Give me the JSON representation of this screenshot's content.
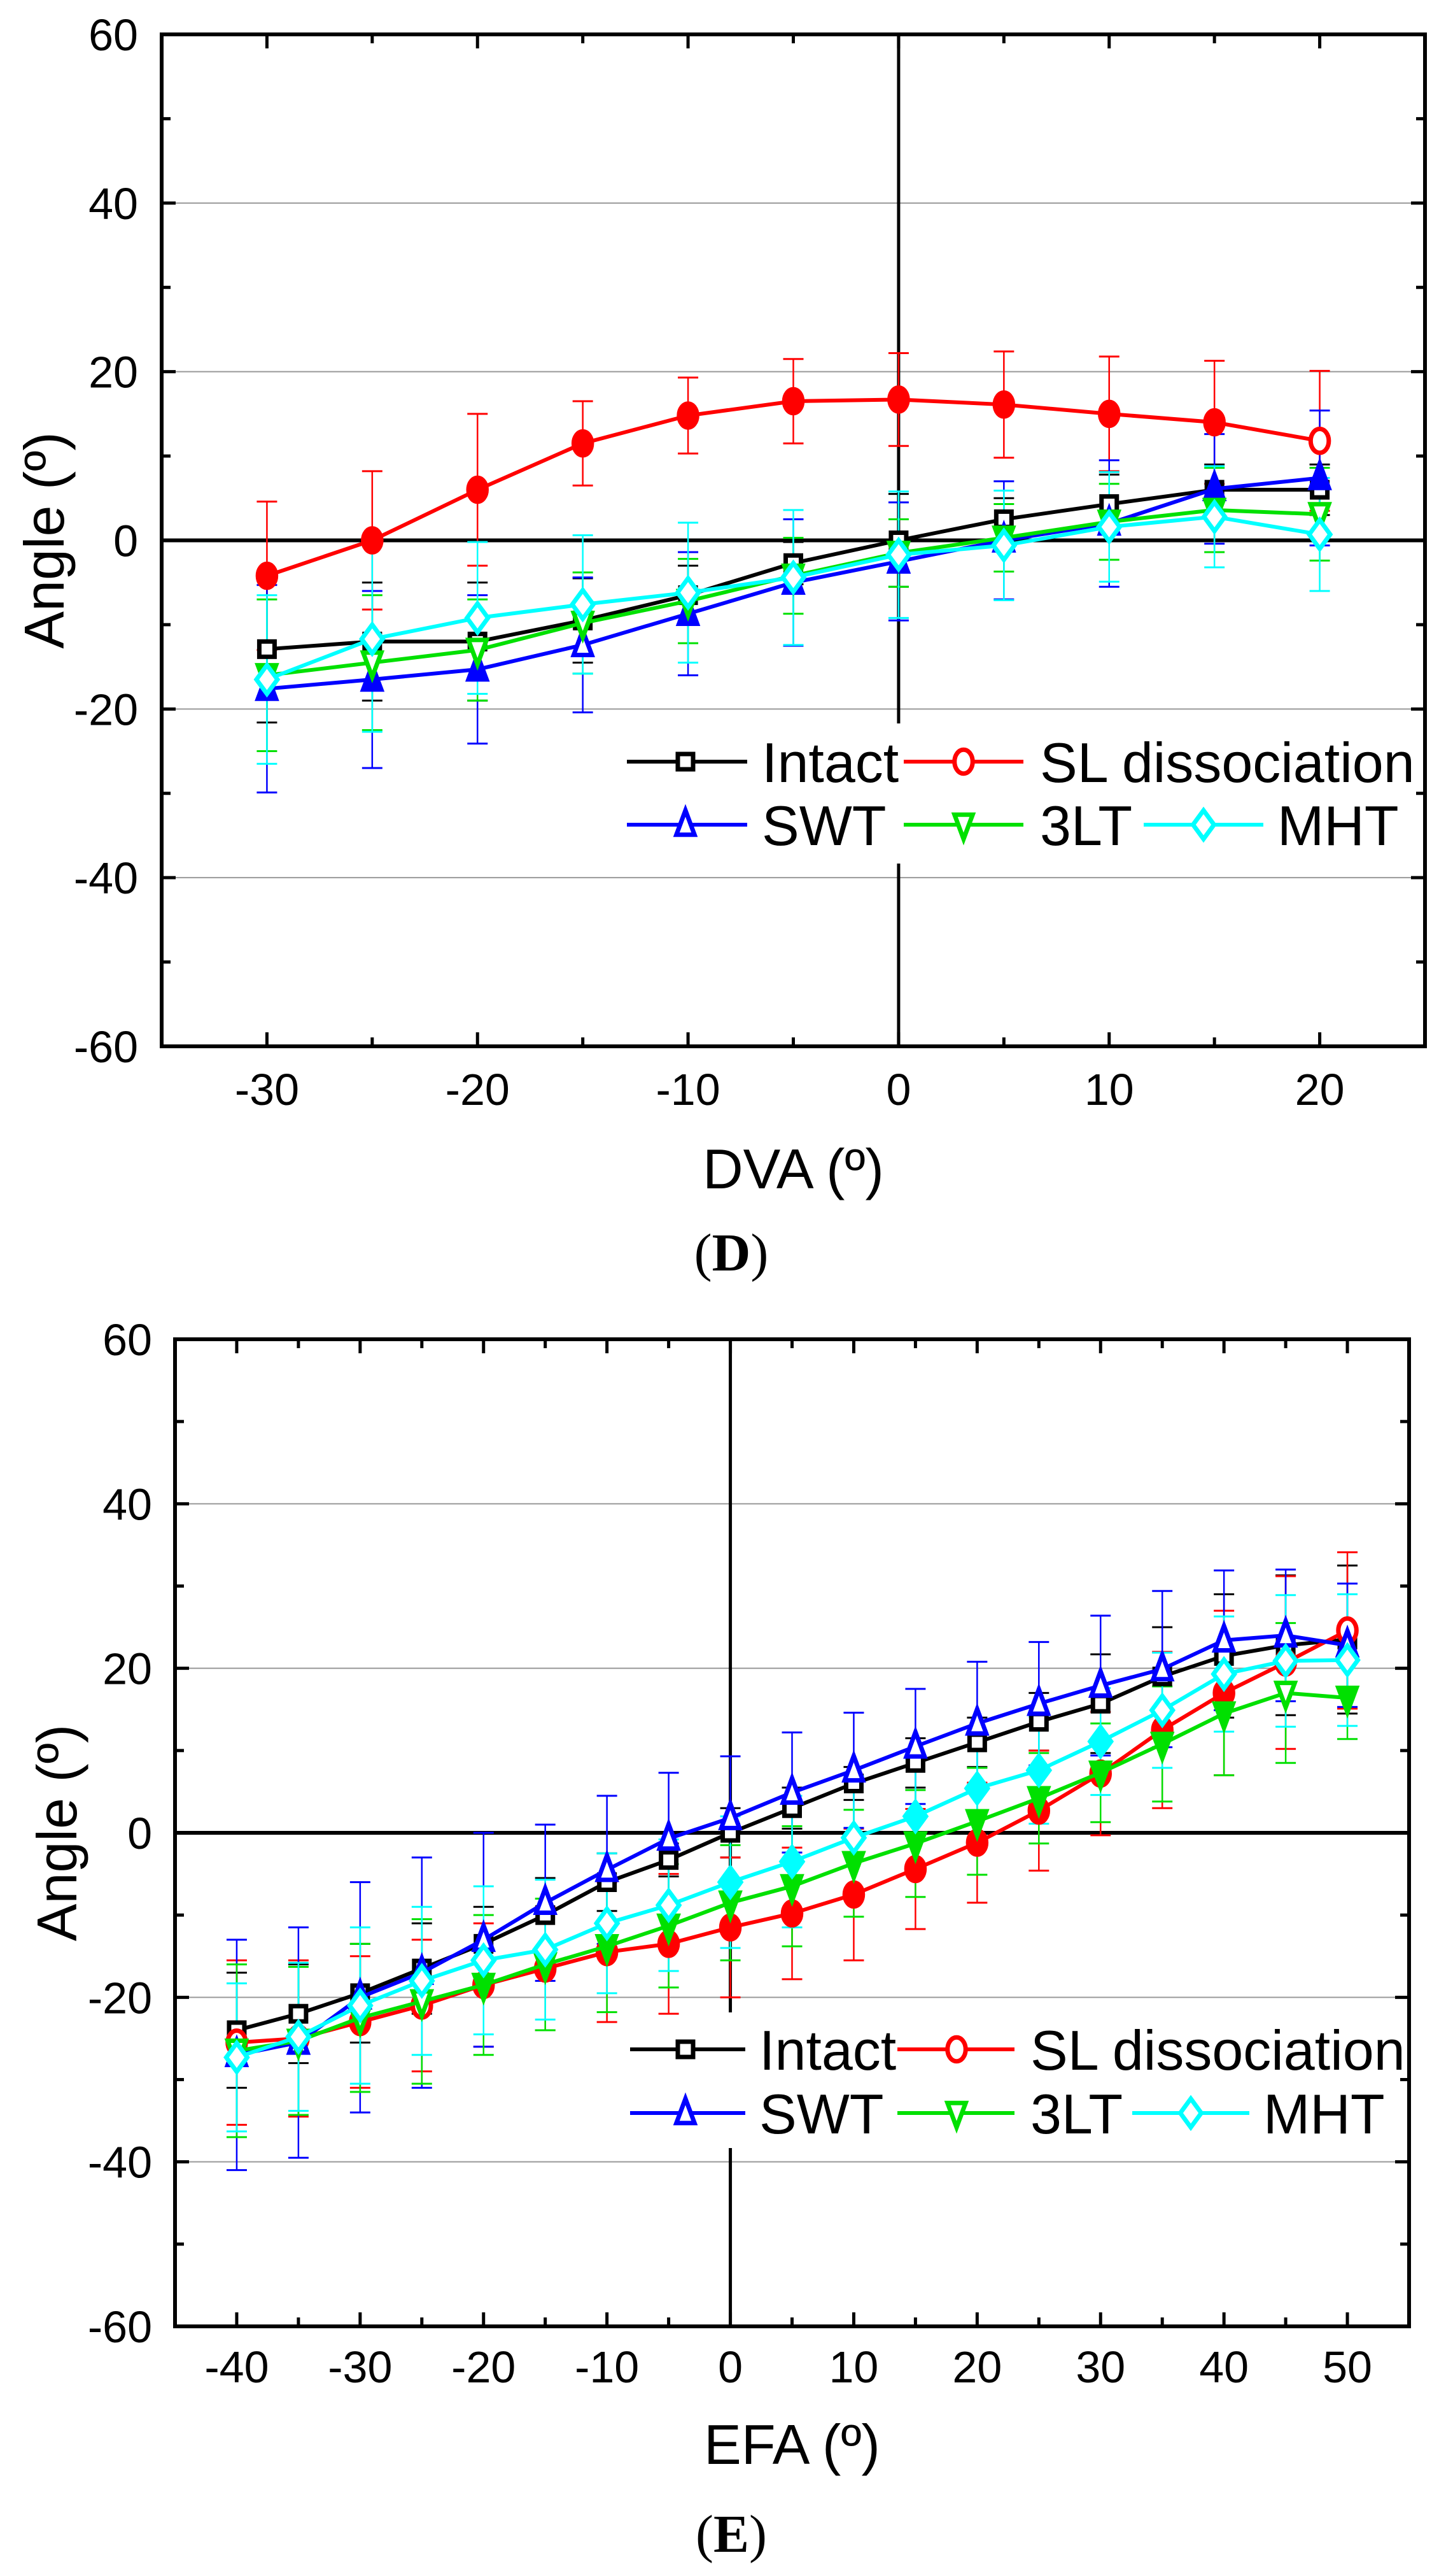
{
  "colors": {
    "Intact": "#000000",
    "SL dissociation": "#ff0000",
    "SWT": "#0000ff",
    "3LT": "#00e000",
    "MHT": "#00ffff",
    "grid": "#999999"
  },
  "chart_data": [
    {
      "type": "line",
      "panel_label": "D",
      "caption_open": "(",
      "caption_close": ")",
      "xlabel": "DVA (º)",
      "ylabel": "Angle (º)",
      "xlim": [
        -35,
        25
      ],
      "ylim": [
        -60,
        60
      ],
      "xticks": [
        -30,
        -20,
        -10,
        0,
        10,
        20
      ],
      "yticks": [
        -60,
        -40,
        -20,
        0,
        20,
        40,
        60
      ],
      "grid": "horizontal",
      "legend_placement": "lower-right",
      "x": [
        -30,
        -25,
        -20,
        -15,
        -10,
        -5,
        0,
        5,
        10,
        15,
        20
      ],
      "series": [
        {
          "name": "Intact",
          "marker": "square",
          "values": [
            -12.9,
            -12,
            -12,
            -9.5,
            -6.5,
            -2.7,
            0,
            2.5,
            4.3,
            6,
            6
          ],
          "sd": [
            8.7,
            7,
            7,
            5,
            3.5,
            2.5,
            5.5,
            2.5,
            3.5,
            3,
            3
          ],
          "filled": [
            0,
            0,
            0,
            0,
            0,
            0,
            0,
            0,
            0,
            0,
            0
          ]
        },
        {
          "name": "SL dissociation",
          "marker": "circle",
          "values": [
            -4.2,
            0,
            6,
            11.5,
            14.8,
            16.5,
            16.7,
            16.1,
            15,
            14,
            11.8
          ],
          "sd": [
            8.8,
            8.2,
            9,
            5,
            4.5,
            5,
            5.5,
            6.3,
            6.8,
            7.3,
            8.3
          ],
          "filled": [
            1,
            1,
            1,
            1,
            1,
            1,
            1,
            1,
            1,
            1,
            0
          ]
        },
        {
          "name": "SWT",
          "marker": "triangle-up",
          "values": [
            -17.6,
            -16.5,
            -15.3,
            -12.4,
            -8.7,
            -5,
            -2.5,
            0,
            2,
            6.1,
            7.4
          ],
          "sd": [
            12.3,
            10.5,
            8.8,
            8,
            7.3,
            7.5,
            7,
            7,
            7.5,
            6.5,
            8
          ],
          "filled": [
            1,
            1,
            1,
            0,
            1,
            1,
            1,
            0,
            0,
            1,
            1
          ]
        },
        {
          "name": "3LT",
          "marker": "triangle-down",
          "values": [
            -16,
            -14.5,
            -13,
            -9.8,
            -7.2,
            -4.2,
            -1.5,
            0.3,
            2.2,
            3.6,
            3.1
          ],
          "sd": [
            9,
            8,
            6,
            6,
            5,
            4.5,
            4,
            4,
            4.5,
            5,
            5.5
          ],
          "filled": [
            1,
            0,
            0,
            0,
            0,
            1,
            1,
            1,
            1,
            1,
            0
          ]
        },
        {
          "name": "MHT",
          "marker": "diamond",
          "values": [
            -16.5,
            -11.7,
            -9.2,
            -7.6,
            -6.2,
            -4.4,
            -1.7,
            -0.6,
            1.6,
            2.8,
            0.7
          ],
          "sd": [
            10,
            11,
            9,
            8.2,
            8.3,
            8,
            7.5,
            6.5,
            6.5,
            6,
            6.7
          ],
          "filled": [
            0,
            0,
            0,
            0,
            0,
            0,
            0,
            0,
            0,
            0,
            0
          ]
        }
      ]
    },
    {
      "type": "line",
      "panel_label": "E",
      "caption_open": "(",
      "caption_close": ")",
      "xlabel": "EFA (º)",
      "ylabel": "Angle (º)",
      "xlim": [
        -45,
        55
      ],
      "ylim": [
        -60,
        60
      ],
      "xticks": [
        -40,
        -30,
        -20,
        -10,
        0,
        10,
        20,
        30,
        40,
        50
      ],
      "yticks": [
        -60,
        -40,
        -20,
        0,
        20,
        40,
        60
      ],
      "grid": "horizontal",
      "legend_placement": "lower-right",
      "x": [
        -40,
        -35,
        -30,
        -25,
        -20,
        -15,
        -10,
        -5,
        0,
        5,
        10,
        15,
        20,
        25,
        30,
        35,
        40,
        45,
        50
      ],
      "series": [
        {
          "name": "Intact",
          "marker": "square",
          "values": [
            -24,
            -22,
            -19.5,
            -16.5,
            -13.5,
            -10,
            -6,
            -3.3,
            0,
            3,
            6,
            8.5,
            11,
            13.5,
            15.7,
            19,
            21.5,
            22.8,
            23.5
          ],
          "sd": [
            7,
            6,
            6,
            5.5,
            4.5,
            4.5,
            3.5,
            2,
            3,
            2.5,
            2,
            3,
            3,
            3.5,
            6,
            6,
            7.5,
            8.5,
            9
          ],
          "filled": [
            0,
            0,
            0,
            0,
            0,
            0,
            0,
            0,
            0,
            0,
            0,
            0,
            0,
            0,
            0,
            0,
            0,
            0,
            0
          ]
        },
        {
          "name": "SL dissociation",
          "marker": "circle",
          "values": [
            -25.5,
            -25,
            -23,
            -21,
            -18.5,
            -16.5,
            -14.5,
            -13.5,
            -11.5,
            -9.8,
            -7.5,
            -4.4,
            -1.2,
            2.7,
            7.2,
            12.5,
            17,
            20.7,
            24.6
          ],
          "sd": [
            10,
            9.5,
            8,
            8,
            7.5,
            7.5,
            8.5,
            8.5,
            8.5,
            8,
            8,
            7.3,
            7.3,
            7.3,
            7.5,
            9.5,
            10,
            10.5,
            9.5
          ],
          "filled": [
            0,
            0,
            1,
            0,
            1,
            1,
            1,
            1,
            1,
            1,
            1,
            1,
            1,
            1,
            1,
            1,
            1,
            1,
            0
          ]
        },
        {
          "name": "SWT",
          "marker": "triangle-up",
          "values": [
            -27,
            -25.5,
            -20,
            -17,
            -13,
            -8.5,
            -4.5,
            -0.7,
            1.8,
            4.9,
            7.6,
            10.5,
            13.3,
            15.7,
            17.9,
            19.9,
            23.4,
            24,
            22.8
          ],
          "sd": [
            14,
            14,
            14,
            14,
            13,
            9.5,
            9,
            8,
            7.5,
            7.3,
            7,
            7,
            7.5,
            7.5,
            8.5,
            9.5,
            8.5,
            8,
            7.5
          ],
          "filled": [
            0,
            0,
            0,
            0,
            0,
            0,
            0,
            0,
            0,
            0,
            0,
            0,
            0,
            0,
            0,
            0,
            0,
            0,
            0
          ]
        },
        {
          "name": "3LT",
          "marker": "triangle-down",
          "values": [
            -26.5,
            -25.3,
            -22.5,
            -20.5,
            -18.5,
            -16,
            -13.8,
            -11.3,
            -8.5,
            -6.5,
            -3.7,
            -1.3,
            1.4,
            4.2,
            7.3,
            10.8,
            14.5,
            17,
            16.4
          ],
          "sd": [
            10.5,
            9,
            9,
            10,
            8.5,
            8,
            8,
            7.5,
            7,
            7.3,
            6.5,
            6.5,
            6.5,
            5.5,
            6,
            7,
            7.5,
            8.5,
            5
          ],
          "filled": [
            0,
            0,
            0,
            0,
            1,
            1,
            1,
            1,
            1,
            1,
            1,
            1,
            1,
            1,
            1,
            1,
            1,
            0,
            1
          ]
        },
        {
          "name": "MHT",
          "marker": "diamond",
          "values": [
            -27.3,
            -24.8,
            -21,
            -18,
            -15.5,
            -14.2,
            -11,
            -8.8,
            -6,
            -3.5,
            -0.6,
            2,
            5.4,
            7.6,
            11.1,
            14.9,
            19.3,
            20.9,
            21
          ],
          "sd": [
            9,
            9,
            9.5,
            9,
            9,
            8.5,
            8.5,
            8,
            8,
            8,
            7.5,
            7,
            6.5,
            6.5,
            6.5,
            7,
            7,
            8,
            8
          ],
          "filled": [
            0,
            0,
            0,
            0,
            0,
            0,
            0,
            0,
            1,
            1,
            0,
            1,
            1,
            1,
            1,
            0,
            0,
            0,
            0
          ]
        }
      ]
    }
  ]
}
